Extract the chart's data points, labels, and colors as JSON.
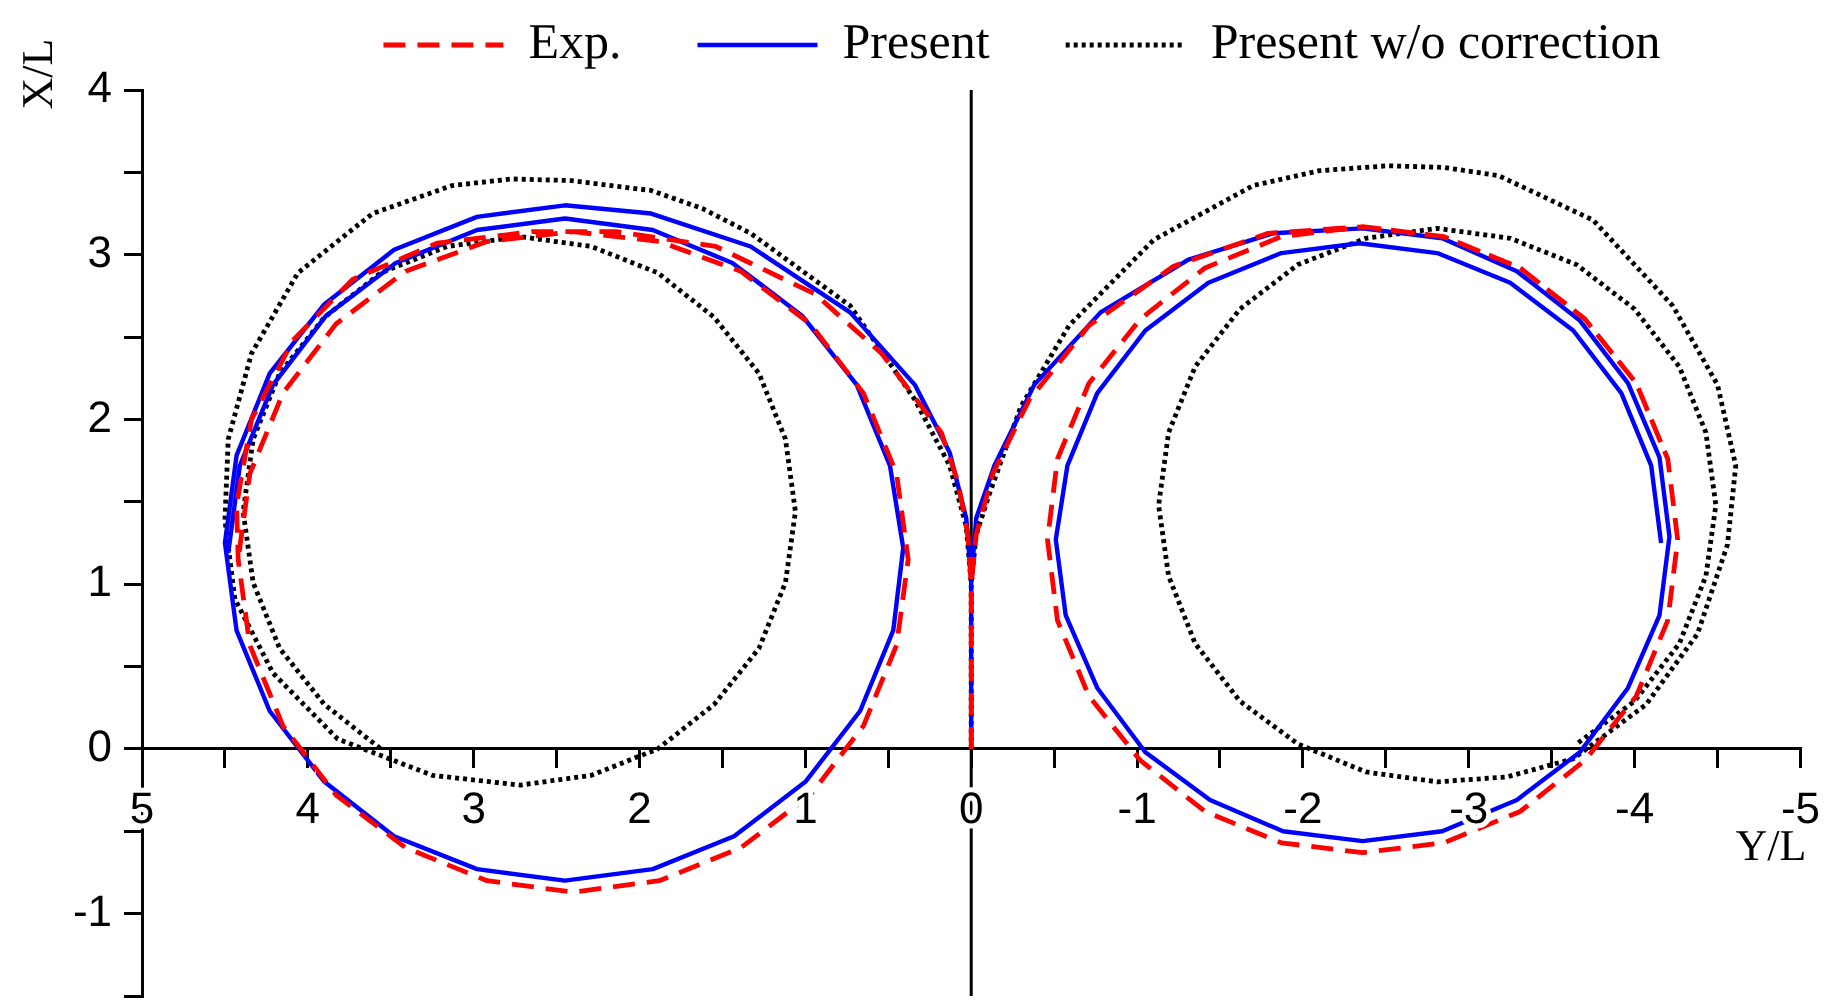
{
  "chart_data": {
    "type": "line",
    "xlabel": "Y/L",
    "ylabel": "X/L",
    "xlim": [
      5,
      -5
    ],
    "ylim": [
      -1.5,
      4
    ],
    "xticks": [
      5,
      {
        "value": 4.5,
        "label": null
      },
      4,
      {
        "value": 3.5,
        "label": null
      },
      3,
      {
        "value": 2.5,
        "label": null
      },
      2,
      {
        "value": 1.5,
        "label": null
      },
      1,
      {
        "value": 0.5,
        "label": null
      },
      0,
      {
        "value": -0.5,
        "label": null
      },
      -1,
      {
        "value": -1.5,
        "label": null
      },
      -2,
      {
        "value": -2.5,
        "label": null
      },
      -3,
      {
        "value": -3.5,
        "label": null
      },
      -4,
      {
        "value": -4.5,
        "label": null
      },
      -5
    ],
    "yticks": [
      {
        "value": -1.5,
        "label": null
      },
      -1,
      {
        "value": -0.5,
        "label": null
      },
      0,
      {
        "value": 0.5,
        "label": null
      },
      1,
      {
        "value": 1.5,
        "label": null
      },
      2,
      {
        "value": 2.5,
        "label": null
      },
      3,
      {
        "value": 3.5,
        "label": null
      },
      4
    ],
    "legend": "top",
    "marker": "none",
    "ref_lines": [
      {
        "axis": "x",
        "value": 0,
        "color": "#000000"
      }
    ],
    "series": [
      {
        "name": "Exp.",
        "color": "#ff0000",
        "line_style": "dashed",
        "x": [
          0,
          0,
          0.02,
          0.08,
          0.18,
          0.54,
          0.94,
          1.54,
          2.14,
          2.65,
          3.22,
          3.73,
          4.09,
          4.34,
          4.43,
          4.42,
          4.35,
          4.15,
          3.83,
          3.41,
          2.92,
          2.4,
          1.88,
          1.39,
          0.97,
          0.65,
          0.45,
          0.38,
          0.45,
          0.65,
          0.97,
          1.39,
          1.88,
          2.4,
          2.92,
          3.41,
          3.83,
          4.15,
          4.35,
          4.42,
          null,
          0,
          0,
          -0.03,
          -0.13,
          -0.35,
          -0.71,
          -1.22,
          -1.79,
          -2.36,
          -2.85,
          -3.31,
          -3.7,
          -4.01,
          -4.2,
          -4.26,
          -4.2,
          -4.01,
          -3.7,
          -3.31,
          -2.85,
          -2.36,
          -1.87,
          -1.41,
          -1.02,
          -0.71,
          -0.52,
          -0.46,
          -0.52,
          -0.71,
          -1.02,
          -1.41,
          -1.87,
          -2.36,
          -2.85,
          -3.31,
          -3.7,
          -4.01,
          -4.2
        ],
        "values": [
          0,
          1.0,
          1.3,
          1.62,
          1.92,
          2.4,
          2.76,
          3.05,
          3.14,
          3.14,
          3.07,
          2.85,
          2.48,
          2.0,
          1.48,
          1.15,
          0.63,
          0.14,
          -0.28,
          -0.6,
          -0.8,
          -0.87,
          -0.8,
          -0.6,
          -0.28,
          0.14,
          0.63,
          1.15,
          1.67,
          2.16,
          2.58,
          2.9,
          3.08,
          3.14,
          3.08,
          2.9,
          2.58,
          2.16,
          1.67,
          1.15,
          null,
          0,
          1.0,
          1.3,
          1.67,
          2.12,
          2.57,
          2.93,
          3.13,
          3.17,
          3.11,
          2.92,
          2.61,
          2.22,
          1.76,
          1.27,
          0.78,
          0.32,
          -0.07,
          -0.38,
          -0.57,
          -0.63,
          -0.57,
          -0.38,
          -0.07,
          0.32,
          0.78,
          1.27,
          1.76,
          2.22,
          2.61,
          2.92,
          3.11,
          3.17,
          3.11,
          2.92,
          2.61,
          2.22,
          1.76
        ]
      },
      {
        "name": "Present",
        "color": "#0000ff",
        "line_style": "solid",
        "x": [
          0,
          0,
          0.03,
          0.13,
          0.34,
          0.73,
          1.33,
          1.93,
          2.45,
          2.98,
          3.48,
          3.9,
          4.23,
          4.43,
          4.5,
          4.43,
          4.23,
          3.9,
          3.48,
          2.98,
          2.45,
          1.92,
          1.43,
          1.0,
          0.67,
          0.47,
          0.41,
          0.49,
          0.69,
          1.02,
          1.44,
          1.92,
          2.45,
          2.98,
          3.47,
          3.89,
          4.21,
          4.41,
          4.48,
          null,
          0,
          0,
          -0.03,
          -0.14,
          -0.38,
          -0.78,
          -1.31,
          -1.82,
          -2.36,
          -2.84,
          -3.29,
          -3.67,
          -3.96,
          -4.15,
          -4.21,
          -4.15,
          -3.96,
          -3.67,
          -3.29,
          -2.84,
          -2.36,
          -1.88,
          -1.44,
          -1.05,
          -0.76,
          -0.57,
          -0.51,
          -0.58,
          -0.76,
          -1.05,
          -1.43,
          -1.87,
          -2.34,
          -2.81,
          -3.25,
          -3.63,
          -3.92,
          -4.1,
          -4.16
        ],
        "values": [
          0,
          1.03,
          1.4,
          1.8,
          2.21,
          2.65,
          3.05,
          3.25,
          3.3,
          3.23,
          3.03,
          2.7,
          2.28,
          1.78,
          1.25,
          0.72,
          0.23,
          -0.2,
          -0.53,
          -0.73,
          -0.8,
          -0.73,
          -0.53,
          -0.2,
          0.23,
          0.72,
          1.22,
          1.72,
          2.21,
          2.63,
          2.95,
          3.15,
          3.22,
          3.15,
          2.95,
          2.63,
          2.21,
          1.72,
          1.19,
          null,
          0,
          1.03,
          1.4,
          1.72,
          2.21,
          2.65,
          2.97,
          3.13,
          3.16,
          3.1,
          2.9,
          2.6,
          2.22,
          1.77,
          1.29,
          0.81,
          0.37,
          -0.02,
          -0.31,
          -0.5,
          -0.56,
          -0.5,
          -0.31,
          -0.02,
          0.37,
          0.81,
          1.27,
          1.72,
          2.16,
          2.54,
          2.83,
          3.01,
          3.07,
          3.01,
          2.83,
          2.54,
          2.16,
          1.72,
          1.25
        ]
      },
      {
        "name": "Present w/o correction",
        "color": "#000000",
        "line_style": "dotted",
        "x": [
          0,
          0,
          0.03,
          0.13,
          0.34,
          0.73,
          1.33,
          1.62,
          1.93,
          2.41,
          2.77,
          3.13,
          3.61,
          4.06,
          4.34,
          4.48,
          4.5,
          4.44,
          4.21,
          3.82,
          3.25,
          2.72,
          2.29,
          1.89,
          1.55,
          1.28,
          1.12,
          1.06,
          1.12,
          1.28,
          1.55,
          1.89,
          2.29,
          2.72,
          3.16,
          3.56,
          3.9,
          4.17,
          4.33,
          4.39,
          4.33,
          4.17,
          3.9,
          3.56,
          null,
          0,
          0,
          -0.03,
          -0.11,
          -0.3,
          -0.59,
          -1.1,
          -1.7,
          -2.1,
          -2.51,
          -2.85,
          -3.18,
          -3.75,
          -4.23,
          -4.5,
          -4.61,
          -4.56,
          -4.38,
          -4.07,
          -3.63,
          -3.23,
          -2.81,
          -2.38,
          -1.97,
          -1.62,
          -1.35,
          -1.19,
          -1.13,
          -1.19,
          -1.35,
          -1.62,
          -1.97,
          -2.38,
          -2.81,
          -3.25,
          -3.65,
          -4.0,
          -4.27,
          -4.43,
          -4.49,
          -4.43,
          -4.27,
          -4.0,
          -3.65
        ],
        "values": [
          0,
          1.0,
          1.35,
          1.72,
          2.12,
          2.69,
          3.13,
          3.28,
          3.39,
          3.45,
          3.46,
          3.42,
          3.25,
          2.89,
          2.4,
          1.88,
          1.39,
          0.91,
          0.46,
          0.06,
          -0.16,
          -0.22,
          -0.16,
          0.0,
          0.27,
          0.61,
          1.01,
          1.44,
          1.88,
          2.28,
          2.62,
          2.89,
          3.05,
          3.11,
          3.05,
          2.89,
          2.62,
          2.28,
          1.88,
          1.44,
          1.01,
          0.61,
          0.27,
          0.0,
          null,
          0,
          1.0,
          1.3,
          1.55,
          2.08,
          2.57,
          3.09,
          3.42,
          3.51,
          3.54,
          3.53,
          3.48,
          3.21,
          2.69,
          2.21,
          1.72,
          1.24,
          0.7,
          0.27,
          -0.06,
          -0.17,
          -0.2,
          -0.14,
          0.03,
          0.29,
          0.64,
          1.05,
          1.48,
          1.92,
          2.32,
          2.67,
          2.94,
          3.1,
          3.16,
          3.1,
          2.94,
          2.67,
          2.32,
          1.92,
          1.48,
          1.05,
          0.64,
          0.29,
          0.03
        ]
      }
    ]
  }
}
